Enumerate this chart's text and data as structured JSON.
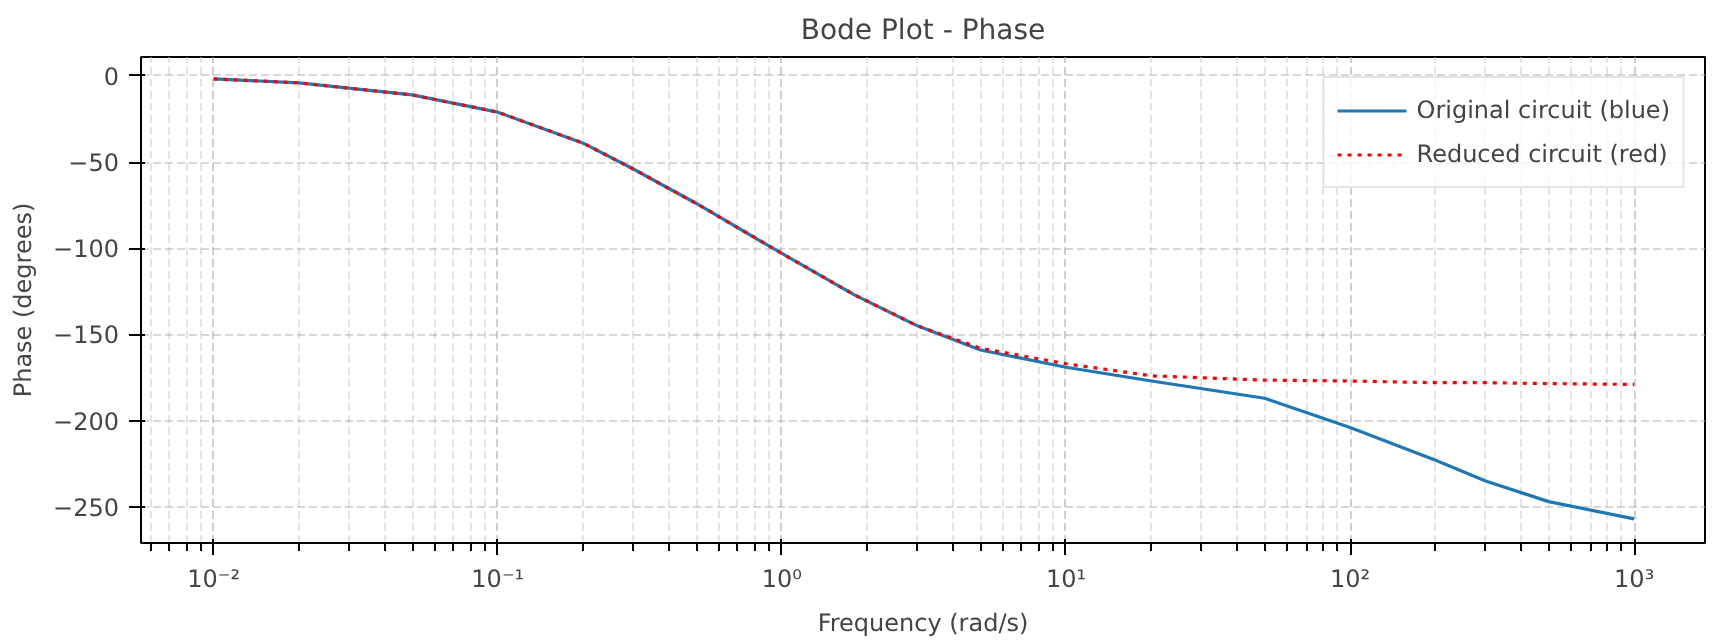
{
  "chart_data": {
    "type": "line",
    "title": "Bode Plot - Phase",
    "xlabel": "Frequency (rad/s)",
    "ylabel": "Phase (degrees)",
    "log": "x",
    "grid": true,
    "legend": "top right",
    "xlim": [
      0.00555,
      1775
    ],
    "ylim": [
      -271,
      11
    ],
    "xticks": [
      {
        "value": 0.01,
        "label": "10⁻²"
      },
      {
        "value": 0.1,
        "label": "10⁻¹"
      },
      {
        "value": 1,
        "label": "10⁰"
      },
      {
        "value": 10,
        "label": "10¹"
      },
      {
        "value": 100,
        "label": "10²"
      },
      {
        "value": 1000,
        "label": "10³"
      }
    ],
    "yticks": [
      0,
      -50,
      -100,
      -150,
      -200,
      -250
    ],
    "x": [
      0.01,
      0.02,
      0.05,
      0.1,
      0.2,
      0.3,
      0.5,
      1,
      1.8,
      3,
      5,
      10,
      20,
      50,
      100,
      200,
      300,
      500,
      1000
    ],
    "series": [
      {
        "name": "Original circuit (blue)",
        "color": "#1f77b4",
        "line_style": "solid",
        "values": [
          -1.7,
          -4,
          -11,
          -21,
          -39,
          -54,
          -74,
          -103,
          -127,
          -145,
          -159,
          -169,
          -177,
          -187,
          -204,
          -223,
          -235,
          -247,
          -257
        ]
      },
      {
        "name": "Reduced circuit (red)",
        "color": "#ff0000",
        "line_style": "dotted",
        "values": [
          -1.7,
          -4,
          -11,
          -21,
          -39,
          -54,
          -74,
          -103,
          -127,
          -145,
          -158,
          -167,
          -174,
          -176.5,
          -177,
          -178,
          -178,
          -178.5,
          -179
        ]
      }
    ]
  }
}
